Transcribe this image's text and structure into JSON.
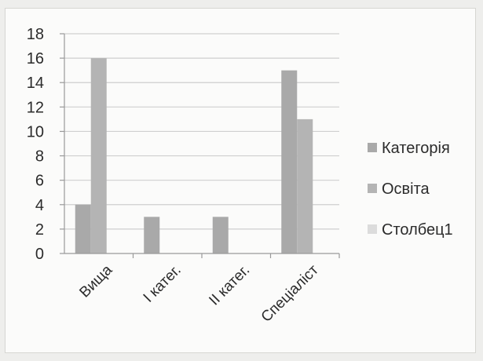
{
  "chart_data": {
    "type": "bar",
    "title": "",
    "xlabel": "",
    "ylabel": "",
    "categories": [
      "Вища",
      "І катег.",
      "ІІ катег.",
      "Спеціаліст"
    ],
    "series": [
      {
        "name": "Категорія",
        "values": [
          4,
          3,
          3,
          15
        ],
        "color": "#a9a9a9"
      },
      {
        "name": "Освіта",
        "values": [
          16,
          0,
          0,
          11
        ],
        "color": "#b4b4b4"
      },
      {
        "name": "Столбец1",
        "values": [
          0,
          0,
          0,
          0
        ],
        "color": "#dcdcdc"
      }
    ],
    "ylim": [
      0,
      18
    ],
    "yticks": [
      0,
      2,
      4,
      6,
      8,
      10,
      12,
      14,
      16,
      18
    ],
    "grid": true,
    "legend_position": "right"
  }
}
